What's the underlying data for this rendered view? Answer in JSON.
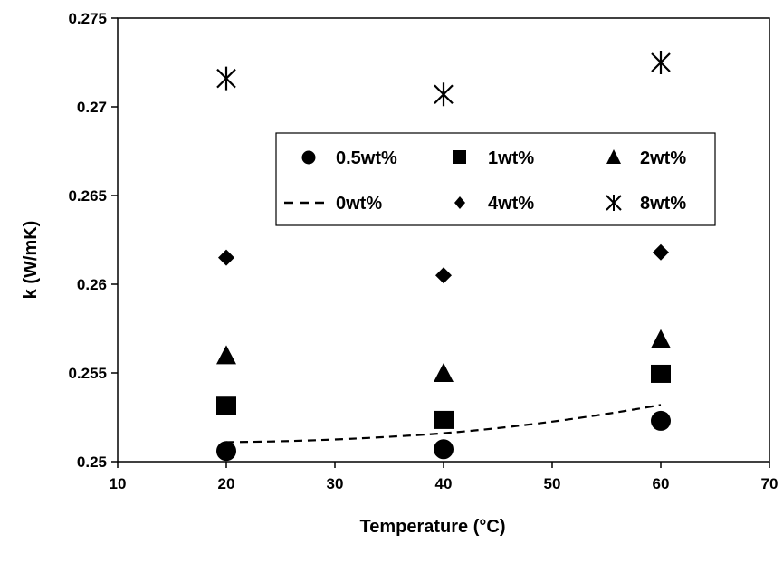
{
  "chart_data": {
    "type": "scatter",
    "title": "",
    "xlabel": "Temperature (°C)",
    "ylabel": "k (W/mK)",
    "xlim": [
      10,
      70
    ],
    "ylim": [
      0.25,
      0.275
    ],
    "xticks": [
      10,
      20,
      30,
      40,
      50,
      60,
      70
    ],
    "yticks": [
      0.25,
      0.255,
      0.26,
      0.265,
      0.27,
      0.275
    ],
    "ytick_labels": [
      "0.25",
      "0.255",
      "0.26",
      "0.265",
      "0.27",
      "0.275"
    ],
    "grid": false,
    "legend_position": "center-right",
    "series": [
      {
        "name": "0.5wt%",
        "marker": "circle",
        "x": [
          20,
          40,
          60
        ],
        "y": [
          0.2506,
          0.2507,
          0.2523
        ]
      },
      {
        "name": "1wt%",
        "marker": "square",
        "x": [
          20,
          40,
          60
        ],
        "y": [
          0.2531,
          0.2523,
          0.2549
        ]
      },
      {
        "name": "2wt%",
        "marker": "triangle",
        "x": [
          20,
          40,
          60
        ],
        "y": [
          0.256,
          0.255,
          0.2569
        ]
      },
      {
        "name": "0wt%",
        "marker": "dashed-line",
        "x": [
          20,
          40,
          60
        ],
        "y": [
          0.2511,
          0.2516,
          0.2532
        ]
      },
      {
        "name": "4wt%",
        "marker": "diamond",
        "x": [
          20,
          40,
          60
        ],
        "y": [
          0.2615,
          0.2605,
          0.2618
        ]
      },
      {
        "name": "8wt%",
        "marker": "asterisk",
        "x": [
          20,
          40,
          60
        ],
        "y": [
          0.2716,
          0.2707,
          0.2725
        ]
      }
    ],
    "colors": {
      "marker": "#000000",
      "axis": "#000000"
    }
  }
}
